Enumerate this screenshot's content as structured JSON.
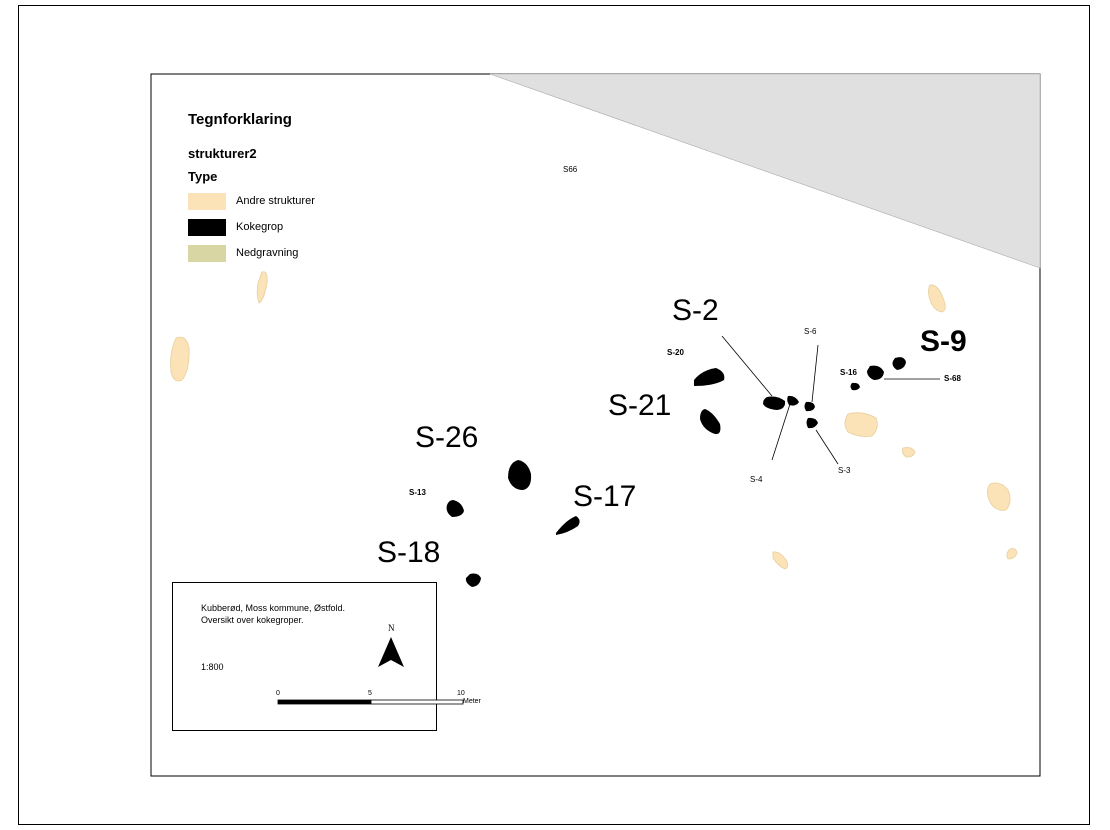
{
  "legend": {
    "title": "Tegnforklaring",
    "layer": "strukturer2",
    "field": "Type",
    "items": [
      {
        "label": "Andre strukturer",
        "color": "#fbe3b7"
      },
      {
        "label": "Kokegrop",
        "color": "#000000"
      },
      {
        "label": "Nedgravning",
        "color": "#d8d6a2"
      }
    ]
  },
  "map": {
    "shaded_area_color": "#e0e0e0",
    "labels": {
      "s66": "S66",
      "s2": "S-2",
      "s20": "S-20",
      "s21": "S-21",
      "s26": "S-26",
      "s13": "S-13",
      "s17": "S-17",
      "s18": "S-18",
      "s6": "S-6",
      "s4": "S-4",
      "s3": "S-3",
      "s9": "S-9",
      "s16": "S-16",
      "s68": "S-68"
    }
  },
  "info": {
    "line1": "Kubberød, Moss kommune, Østfold.",
    "line2": "Oversikt over kokegroper.",
    "scale_ratio": "1:800",
    "north": "N",
    "scale_ticks": [
      "0",
      "5",
      "10"
    ],
    "scale_unit": "Meter"
  }
}
